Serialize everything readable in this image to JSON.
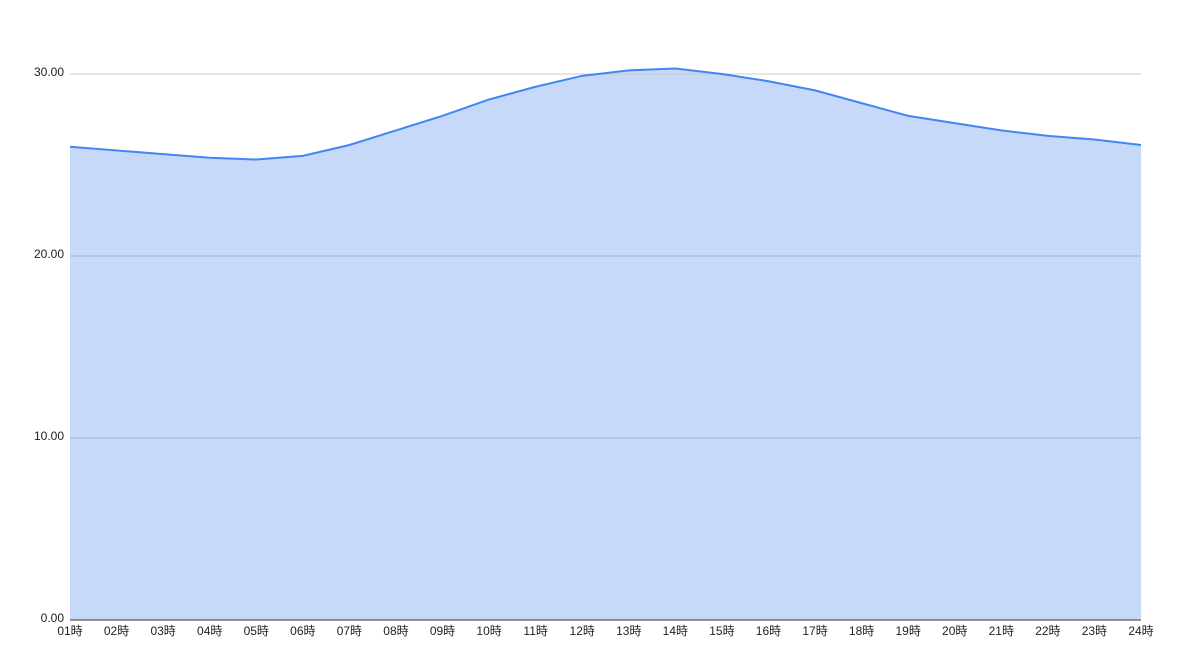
{
  "chart_data": {
    "type": "area",
    "categories": [
      "01時",
      "02時",
      "03時",
      "04時",
      "05時",
      "06時",
      "07時",
      "08時",
      "09時",
      "10時",
      "11時",
      "12時",
      "13時",
      "14時",
      "15時",
      "16時",
      "17時",
      "18時",
      "19時",
      "20時",
      "21時",
      "22時",
      "23時",
      "24時"
    ],
    "values": [
      26.0,
      25.8,
      25.6,
      25.4,
      25.3,
      25.5,
      26.1,
      26.9,
      27.7,
      28.6,
      29.3,
      29.9,
      30.2,
      30.3,
      30.0,
      29.6,
      29.1,
      28.4,
      27.7,
      27.3,
      26.9,
      26.6,
      26.4,
      26.1
    ],
    "color": "#4285f4",
    "fill": "#c6d9f8",
    "ylim": [
      0,
      30
    ],
    "yticks": [
      {
        "value": 0,
        "label": "0.00"
      },
      {
        "value": 10,
        "label": "10.00"
      },
      {
        "value": 20,
        "label": "20.00"
      },
      {
        "value": 30,
        "label": "30.00"
      }
    ],
    "grid": true
  }
}
